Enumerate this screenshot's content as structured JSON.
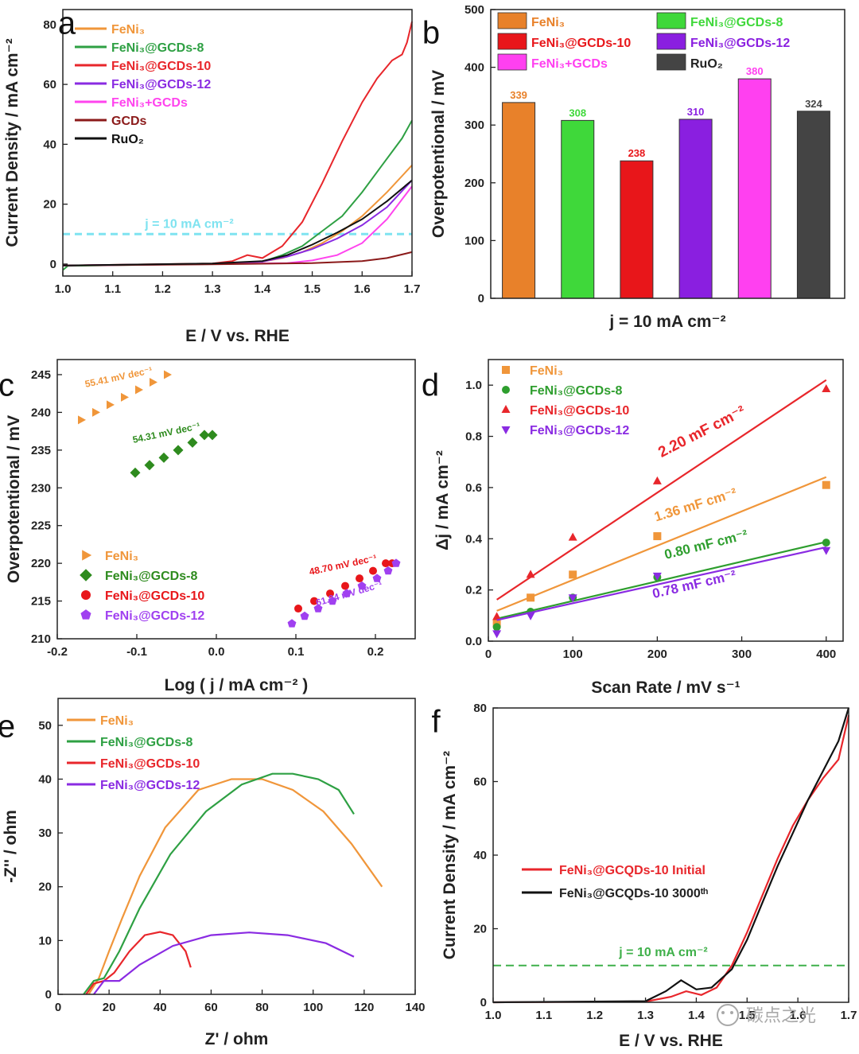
{
  "chart_data": [
    {
      "panel": "a",
      "type": "line",
      "xlabel": "E / V vs. RHE",
      "ylabel": "Current Density / mA cm⁻²",
      "xlim": [
        1.0,
        1.7
      ],
      "ylim": [
        -4,
        85
      ],
      "xticks": [
        1.0,
        1.1,
        1.2,
        1.3,
        1.4,
        1.5,
        1.6,
        1.7
      ],
      "yticks": [
        0,
        20,
        40,
        60,
        80
      ],
      "ref_line": {
        "y": 10,
        "label": "j = 10 mA cm⁻²",
        "color": "#7fe3f0"
      },
      "series": [
        {
          "name": "FeNi₃",
          "color": "#f0963a",
          "x": [
            1.0,
            1.3,
            1.4,
            1.44,
            1.48,
            1.52,
            1.56,
            1.6,
            1.65,
            1.7
          ],
          "y": [
            -0.5,
            0.1,
            0.8,
            2,
            4,
            7,
            11,
            16,
            24,
            33
          ]
        },
        {
          "name": "FeNi₃@GCDs-8",
          "color": "#2ea043",
          "x": [
            1.0,
            1.01,
            1.3,
            1.4,
            1.44,
            1.48,
            1.52,
            1.56,
            1.6,
            1.64,
            1.68,
            1.7
          ],
          "y": [
            -2,
            -0.6,
            0.1,
            0.8,
            3,
            6,
            11,
            16,
            24,
            33,
            42,
            48
          ]
        },
        {
          "name": "FeNi₃@GCDs-10",
          "color": "#e8262b",
          "x": [
            1.0,
            1.3,
            1.34,
            1.37,
            1.4,
            1.44,
            1.48,
            1.52,
            1.56,
            1.6,
            1.63,
            1.66,
            1.68,
            1.69,
            1.7
          ],
          "y": [
            -0.5,
            0.2,
            1,
            3,
            2,
            6,
            14,
            27,
            41,
            54,
            62,
            68,
            70,
            74,
            81
          ]
        },
        {
          "name": "FeNi₃@GCDs-12",
          "color": "#8a2be2",
          "x": [
            1.0,
            1.3,
            1.4,
            1.45,
            1.5,
            1.55,
            1.6,
            1.65,
            1.7
          ],
          "y": [
            -0.5,
            0.1,
            0.8,
            2.5,
            5,
            8.5,
            13,
            19,
            28
          ]
        },
        {
          "name": "FeNi₃+GCDs",
          "color": "#ff44ee",
          "x": [
            1.0,
            1.3,
            1.45,
            1.5,
            1.55,
            1.6,
            1.65,
            1.7
          ],
          "y": [
            -0.5,
            0,
            0.3,
            1.2,
            3,
            7,
            15,
            26
          ]
        },
        {
          "name": "GCDs",
          "color": "#8b1a1a",
          "x": [
            1.0,
            1.3,
            1.5,
            1.6,
            1.65,
            1.7
          ],
          "y": [
            -0.5,
            -0.1,
            0.3,
            1,
            2,
            4
          ]
        },
        {
          "name": "RuO₂",
          "color": "#111111",
          "x": [
            1.0,
            1.3,
            1.4,
            1.45,
            1.5,
            1.55,
            1.6,
            1.65,
            1.7
          ],
          "y": [
            -0.5,
            0.2,
            1,
            3,
            6.5,
            10.5,
            15,
            21,
            28
          ]
        }
      ]
    },
    {
      "panel": "b",
      "type": "bar",
      "xlabel": "j = 10 mA cm⁻²",
      "ylabel": "Overpotentional / mV",
      "ylim": [
        0,
        500
      ],
      "yticks": [
        0,
        100,
        200,
        300,
        400,
        500
      ],
      "categories": [
        "FeNi₃",
        "FeNi₃@GCDs-8",
        "FeNi₃@GCDs-10",
        "FeNi₃@GCDs-12",
        "FeNi₃+GCDs",
        "RuO₂"
      ],
      "values": [
        339,
        308,
        238,
        310,
        380,
        324
      ],
      "value_labels": [
        "339",
        "308",
        "238",
        "310",
        "380",
        "324"
      ],
      "colors": [
        "#e8812a",
        "#3fd83a",
        "#e8161a",
        "#8a1fe0",
        "#ff40f0",
        "#444444"
      ]
    },
    {
      "panel": "c",
      "type": "scatter",
      "xlabel": "Log ( j / mA cm⁻² )",
      "ylabel": "Overpotentional / mV",
      "xlim": [
        -0.2,
        0.25
      ],
      "ylim": [
        210,
        247
      ],
      "xticks": [
        -0.2,
        -0.1,
        0.0,
        0.1,
        0.2
      ],
      "xtick_labels": [
        "-0.2",
        "-0.1",
        "0.0",
        "0.1",
        "0.2"
      ],
      "yticks": [
        210,
        215,
        220,
        225,
        230,
        235,
        240,
        245
      ],
      "series": [
        {
          "name": "FeNi₃",
          "color": "#f0963a",
          "marker": "triangle-right",
          "slope_label": "55.41 mV dec⁻¹",
          "x": [
            -0.17,
            -0.152,
            -0.134,
            -0.116,
            -0.098,
            -0.08,
            -0.062
          ],
          "y": [
            239,
            240,
            241,
            242,
            243,
            244,
            245
          ]
        },
        {
          "name": "FeNi₃@GCDs-8",
          "color": "#2e8b1e",
          "marker": "diamond",
          "slope_label": "54.31 mV dec⁻¹",
          "x": [
            -0.102,
            -0.084,
            -0.066,
            -0.048,
            -0.03,
            -0.015,
            -0.005
          ],
          "y": [
            232,
            233,
            234,
            235,
            236,
            237,
            237
          ]
        },
        {
          "name": "FeNi₃@GCDs-10",
          "color": "#e8161a",
          "marker": "circle",
          "slope_label": "48.70 mV dec⁻¹",
          "x": [
            0.103,
            0.123,
            0.143,
            0.162,
            0.18,
            0.197,
            0.213,
            0.221
          ],
          "y": [
            214,
            215,
            216,
            217,
            218,
            219,
            220,
            220
          ]
        },
        {
          "name": "FeNi₃@GCDs-12",
          "color": "#a040f0",
          "marker": "pentagon",
          "slope_label": "61.84 mV dec⁻¹",
          "x": [
            0.095,
            0.111,
            0.128,
            0.146,
            0.164,
            0.183,
            0.202,
            0.216,
            0.226
          ],
          "y": [
            212,
            213,
            214,
            215,
            216,
            217,
            218,
            219,
            220
          ]
        }
      ]
    },
    {
      "panel": "d",
      "type": "scatter",
      "xlabel": "Scan Rate / mV s⁻¹",
      "ylabel": "Δj / mA cm⁻²",
      "xlim": [
        0,
        420
      ],
      "ylim": [
        0,
        1.1
      ],
      "xticks": [
        0,
        100,
        200,
        300,
        400
      ],
      "yticks": [
        0.0,
        0.2,
        0.4,
        0.6,
        0.8,
        1.0
      ],
      "ytick_labels": [
        "0.0",
        "0.2",
        "0.4",
        "0.6",
        "0.8",
        "1.0"
      ],
      "series": [
        {
          "name": "FeNi₃",
          "color": "#f0963a",
          "marker": "square",
          "capacitance": "1.36 mF cm⁻²",
          "x": [
            10,
            50,
            100,
            200,
            400
          ],
          "y": [
            0.07,
            0.17,
            0.26,
            0.41,
            0.61
          ],
          "fit": [
            0.105,
            0.00134
          ]
        },
        {
          "name": "FeNi₃@GCDs-8",
          "color": "#2e9e2e",
          "marker": "circle",
          "capacitance": "0.80 mF cm⁻²",
          "x": [
            10,
            50,
            100,
            200,
            400
          ],
          "y": [
            0.055,
            0.115,
            0.17,
            0.25,
            0.385
          ],
          "fit": [
            0.08,
            0.00077
          ]
        },
        {
          "name": "FeNi₃@GCDs-10",
          "color": "#e8262b",
          "marker": "triangle-up",
          "capacitance": "2.20 mF cm⁻²",
          "x": [
            10,
            50,
            100,
            200,
            400
          ],
          "y": [
            0.095,
            0.26,
            0.405,
            0.625,
            0.985
          ],
          "fit": [
            0.14,
            0.0022
          ]
        },
        {
          "name": "FeNi₃@GCDs-12",
          "color": "#8a2be2",
          "marker": "triangle-down",
          "capacitance": "0.78 mF cm⁻²",
          "x": [
            10,
            50,
            100,
            200,
            400
          ],
          "y": [
            0.03,
            0.1,
            0.17,
            0.255,
            0.355
          ],
          "fit": [
            0.075,
            0.00073
          ]
        }
      ]
    },
    {
      "panel": "e",
      "type": "line",
      "xlabel": "Z' / ohm",
      "ylabel": "-Z'' / ohm",
      "xlim": [
        0,
        140
      ],
      "ylim": [
        0,
        55
      ],
      "xticks": [
        0,
        20,
        40,
        60,
        80,
        100,
        120,
        140
      ],
      "yticks": [
        0,
        10,
        20,
        30,
        40,
        50
      ],
      "series": [
        {
          "name": "FeNi₃",
          "color": "#f0963a",
          "x": [
            12,
            16,
            20,
            25,
            32,
            42,
            55,
            68,
            80,
            92,
            104,
            115,
            127
          ],
          "y": [
            0,
            3,
            8,
            14,
            22,
            31,
            38,
            40,
            40,
            38,
            34,
            28,
            20
          ]
        },
        {
          "name": "FeNi₃@GCDs-8",
          "color": "#2ea043",
          "x": [
            10,
            14,
            18,
            24,
            32,
            44,
            58,
            72,
            84,
            92,
            102,
            110,
            116
          ],
          "y": [
            0,
            2.5,
            3,
            8,
            16,
            26,
            34,
            39,
            41,
            41,
            40,
            38,
            33.5
          ]
        },
        {
          "name": "FeNi₃@GCDs-10",
          "color": "#e8262b",
          "x": [
            11,
            14,
            18,
            22,
            28,
            34,
            40,
            45,
            50,
            52
          ],
          "y": [
            0,
            2,
            2.5,
            4,
            8,
            11,
            11.6,
            11,
            8,
            5
          ]
        },
        {
          "name": "FeNi₃@GCDs-12",
          "color": "#8a2be2",
          "x": [
            14,
            18,
            24,
            32,
            45,
            60,
            75,
            90,
            105,
            116
          ],
          "y": [
            0,
            2.5,
            2.5,
            5.5,
            9,
            11,
            11.5,
            11,
            9.5,
            7
          ]
        }
      ]
    },
    {
      "panel": "f",
      "type": "line",
      "xlabel": "E / V vs. RHE",
      "ylabel": "Current Density / mA cm⁻²",
      "xlim": [
        1.0,
        1.7
      ],
      "ylim": [
        0,
        80
      ],
      "xticks": [
        1.0,
        1.1,
        1.2,
        1.3,
        1.4,
        1.5,
        1.6,
        1.7
      ],
      "yticks": [
        0,
        20,
        40,
        60,
        80
      ],
      "ref_line": {
        "y": 10,
        "label": "j = 10 mA cm⁻²",
        "color": "#3fb04a"
      },
      "series": [
        {
          "name": "FeNi₃@GCQDs-10 Initial",
          "color": "#e8262b",
          "x": [
            1.0,
            1.3,
            1.35,
            1.38,
            1.41,
            1.44,
            1.47,
            1.5,
            1.53,
            1.56,
            1.59,
            1.62,
            1.65,
            1.68,
            1.7
          ],
          "y": [
            0,
            0.2,
            1.5,
            3,
            2,
            4,
            10,
            19,
            29,
            39,
            48,
            55,
            61,
            66,
            78
          ]
        },
        {
          "name": "FeNi₃@GCQDs-10 3000ᵗʰ",
          "color": "#111111",
          "x": [
            1.0,
            1.3,
            1.34,
            1.37,
            1.4,
            1.43,
            1.47,
            1.5,
            1.53,
            1.56,
            1.59,
            1.62,
            1.65,
            1.68,
            1.7
          ],
          "y": [
            0,
            0.3,
            3,
            6,
            3.5,
            4,
            9,
            17,
            27,
            37,
            46,
            55,
            63,
            71,
            80
          ]
        }
      ]
    }
  ],
  "watermark": "碳点之光"
}
